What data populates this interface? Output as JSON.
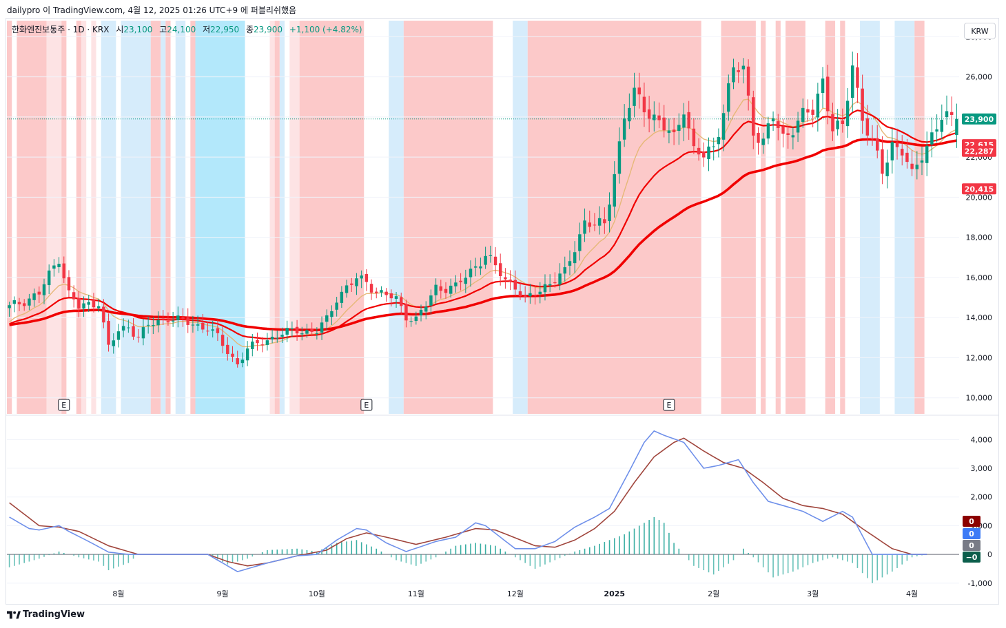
{
  "header": {
    "attribution": "dailypro 이 TradingView.com, 4월 12, 2025 01:26 UTC+9 에 퍼블리쉬했음"
  },
  "legend": {
    "symbol": "한화엔진보통주 · 1D · KRX",
    "open_label": "시",
    "open": "23,100",
    "high_label": "고",
    "high": "24,100",
    "low_label": "저",
    "low": "22,950",
    "close_label": "종",
    "close": "23,900",
    "change": "+1,100 (+4.82%)"
  },
  "currency": "KRW",
  "footer": {
    "brand": "TradingView"
  },
  "colors": {
    "up": "#089981",
    "down": "#f23645",
    "ma_red": "#f00000",
    "ma_tan": "#e6b878",
    "macd": "#6f90ea",
    "signal": "#a0453c",
    "pink": "#fcc9c9",
    "lightblue": "#d6ecfb",
    "cyan": "#b3e8fb",
    "faint_pink": "#fde3e4"
  },
  "chart_data": [
    {
      "type": "candlestick",
      "title": "한화엔진보통주 · 1D · KRX",
      "ylim": [
        9200,
        28800
      ],
      "y_ticks": [
        "10,000",
        "12,000",
        "14,000",
        "16,000",
        "18,000",
        "20,000",
        "22,000",
        "24,000",
        "26,000",
        "28,000"
      ],
      "y_tick_values": [
        10000,
        12000,
        14000,
        16000,
        18000,
        20000,
        22000,
        24000,
        26000,
        28000
      ],
      "x_labels": [
        "8월",
        "9월",
        "10월",
        "11월",
        "12월",
        "2025",
        "2월",
        "3월",
        "4월"
      ],
      "x_label_days": [
        22,
        43,
        62,
        82,
        102,
        122,
        142,
        162,
        182
      ],
      "total_days": 192,
      "anchors": [
        [
          0,
          14500
        ],
        [
          6,
          15200
        ],
        [
          10,
          17000
        ],
        [
          12,
          15200
        ],
        [
          14,
          14500
        ],
        [
          18,
          14800
        ],
        [
          20,
          12500
        ],
        [
          22,
          13300
        ],
        [
          24,
          13600
        ],
        [
          26,
          13000
        ],
        [
          28,
          13600
        ],
        [
          32,
          14000
        ],
        [
          38,
          13600
        ],
        [
          40,
          13500
        ],
        [
          42,
          13000
        ],
        [
          44,
          12300
        ],
        [
          46,
          11700
        ],
        [
          48,
          12400
        ],
        [
          50,
          12700
        ],
        [
          54,
          13100
        ],
        [
          58,
          13400
        ],
        [
          60,
          13300
        ],
        [
          62,
          13300
        ],
        [
          64,
          13900
        ],
        [
          66,
          15000
        ],
        [
          68,
          15500
        ],
        [
          70,
          15900
        ],
        [
          72,
          15800
        ],
        [
          74,
          15300
        ],
        [
          78,
          14900
        ],
        [
          80,
          14100
        ],
        [
          82,
          13900
        ],
        [
          84,
          14600
        ],
        [
          86,
          15500
        ],
        [
          90,
          15500
        ],
        [
          94,
          16600
        ],
        [
          96,
          17100
        ],
        [
          100,
          15900
        ],
        [
          102,
          15600
        ],
        [
          104,
          14800
        ],
        [
          108,
          15600
        ],
        [
          112,
          16200
        ],
        [
          114,
          17500
        ],
        [
          116,
          18800
        ],
        [
          118,
          18600
        ],
        [
          120,
          18600
        ],
        [
          124,
          24000
        ],
        [
          126,
          25100
        ],
        [
          130,
          24000
        ],
        [
          134,
          22900
        ],
        [
          136,
          24600
        ],
        [
          138,
          22300
        ],
        [
          140,
          22000
        ],
        [
          142,
          22500
        ],
        [
          146,
          26300
        ],
        [
          148,
          26400
        ],
        [
          150,
          23400
        ],
        [
          152,
          22700
        ],
        [
          154,
          24000
        ],
        [
          156,
          23000
        ],
        [
          160,
          24000
        ],
        [
          162,
          24300
        ],
        [
          164,
          25900
        ],
        [
          166,
          23400
        ],
        [
          168,
          23400
        ],
        [
          170,
          26700
        ],
        [
          172,
          24000
        ],
        [
          174,
          22600
        ],
        [
          176,
          21300
        ],
        [
          178,
          22700
        ],
        [
          180,
          22300
        ],
        [
          182,
          21000
        ],
        [
          184,
          22200
        ],
        [
          186,
          23100
        ],
        [
          188,
          23900
        ]
      ],
      "last_close": 23900,
      "last_close_label": "23,900",
      "ma_labels": [
        "22,615",
        "22,287",
        "20,415"
      ],
      "earnings_marker": "E",
      "earnings_days": [
        11,
        72,
        133
      ],
      "series": [
        {
          "name": "MA20 (tan)",
          "values_from_day": 0
        },
        {
          "name": "MA red 1",
          "values_from_day": 0
        },
        {
          "name": "MA red 2 (thick)",
          "values_from_day": 0
        }
      ],
      "background_bands": [
        [
          0,
          1,
          "pink"
        ],
        [
          2,
          5,
          "pink"
        ],
        [
          5,
          8,
          "pink"
        ],
        [
          8,
          11,
          "faint_pink"
        ],
        [
          11,
          12,
          "pink"
        ],
        [
          14,
          15,
          "pink"
        ],
        [
          15,
          16,
          "faint_pink"
        ],
        [
          17,
          18,
          "faint_pink"
        ],
        [
          19,
          22,
          "lightblue"
        ],
        [
          23,
          29,
          "lightblue"
        ],
        [
          29,
          31,
          "pink"
        ],
        [
          31,
          32,
          "lightblue"
        ],
        [
          32,
          33,
          "pink"
        ],
        [
          34,
          36,
          "lightblue"
        ],
        [
          37,
          38,
          "pink"
        ],
        [
          38,
          48,
          "cyan"
        ],
        [
          53,
          54,
          "faint_pink"
        ],
        [
          54,
          55,
          "pink"
        ],
        [
          55,
          56,
          "lightblue"
        ],
        [
          57,
          59,
          "faint_pink"
        ],
        [
          59,
          72,
          "pink"
        ],
        [
          77,
          80,
          "lightblue"
        ],
        [
          80,
          98,
          "pink"
        ],
        [
          102,
          105,
          "lightblue"
        ],
        [
          105,
          140,
          "pink"
        ],
        [
          144,
          151,
          "pink"
        ],
        [
          152,
          153,
          "pink"
        ],
        [
          155,
          156,
          "pink"
        ],
        [
          157,
          161,
          "pink"
        ],
        [
          165,
          167,
          "pink"
        ],
        [
          168,
          169,
          "pink"
        ],
        [
          172,
          176,
          "lightblue"
        ],
        [
          179,
          183,
          "lightblue"
        ],
        [
          183,
          185,
          "pink"
        ]
      ]
    },
    {
      "type": "line",
      "title": "MACD",
      "ylim": [
        -1700,
        4800
      ],
      "y_ticks": [
        "-1,000",
        "0",
        "1,000",
        "2,000",
        "3,000",
        "4,000"
      ],
      "y_tick_values": [
        -1000,
        0,
        1000,
        2000,
        3000,
        4000
      ],
      "macd_anchors": [
        [
          0,
          1300
        ],
        [
          4,
          900
        ],
        [
          6,
          850
        ],
        [
          10,
          1000
        ],
        [
          12,
          800
        ],
        [
          16,
          450
        ],
        [
          20,
          80
        ],
        [
          24,
          0
        ],
        [
          40,
          0
        ],
        [
          44,
          -400
        ],
        [
          46,
          -600
        ],
        [
          48,
          -500
        ],
        [
          52,
          -300
        ],
        [
          58,
          -50
        ],
        [
          62,
          0
        ],
        [
          66,
          500
        ],
        [
          70,
          900
        ],
        [
          72,
          850
        ],
        [
          76,
          400
        ],
        [
          80,
          100
        ],
        [
          86,
          450
        ],
        [
          90,
          600
        ],
        [
          94,
          1100
        ],
        [
          96,
          1000
        ],
        [
          102,
          200
        ],
        [
          106,
          200
        ],
        [
          110,
          450
        ],
        [
          114,
          950
        ],
        [
          118,
          1300
        ],
        [
          121,
          1600
        ],
        [
          125,
          2900
        ],
        [
          128,
          3900
        ],
        [
          130,
          4300
        ],
        [
          132,
          4150
        ],
        [
          136,
          3900
        ],
        [
          140,
          3000
        ],
        [
          143,
          3100
        ],
        [
          147,
          3300
        ],
        [
          150,
          2500
        ],
        [
          153,
          1850
        ],
        [
          157,
          1650
        ],
        [
          160,
          1500
        ],
        [
          164,
          1150
        ],
        [
          168,
          1500
        ],
        [
          170,
          1300
        ],
        [
          174,
          0
        ],
        [
          182,
          0
        ],
        [
          185,
          0
        ]
      ],
      "signal_anchors": [
        [
          0,
          1800
        ],
        [
          6,
          1000
        ],
        [
          10,
          950
        ],
        [
          14,
          800
        ],
        [
          20,
          300
        ],
        [
          26,
          0
        ],
        [
          40,
          0
        ],
        [
          44,
          -250
        ],
        [
          48,
          -400
        ],
        [
          52,
          -300
        ],
        [
          58,
          -50
        ],
        [
          64,
          150
        ],
        [
          68,
          550
        ],
        [
          72,
          750
        ],
        [
          76,
          600
        ],
        [
          82,
          350
        ],
        [
          88,
          600
        ],
        [
          94,
          900
        ],
        [
          98,
          850
        ],
        [
          106,
          300
        ],
        [
          110,
          250
        ],
        [
          114,
          500
        ],
        [
          118,
          900
        ],
        [
          122,
          1500
        ],
        [
          126,
          2500
        ],
        [
          130,
          3400
        ],
        [
          134,
          3900
        ],
        [
          136,
          4050
        ],
        [
          140,
          3600
        ],
        [
          144,
          3200
        ],
        [
          148,
          3000
        ],
        [
          152,
          2500
        ],
        [
          156,
          1950
        ],
        [
          160,
          1700
        ],
        [
          164,
          1600
        ],
        [
          168,
          1400
        ],
        [
          172,
          900
        ],
        [
          178,
          200
        ],
        [
          182,
          0
        ],
        [
          185,
          0
        ]
      ],
      "hist_anchors": [
        [
          0,
          -450
        ],
        [
          6,
          -150
        ],
        [
          10,
          100
        ],
        [
          14,
          -100
        ],
        [
          18,
          -250
        ],
        [
          20,
          -550
        ],
        [
          24,
          -300
        ],
        [
          26,
          0
        ],
        [
          40,
          0
        ],
        [
          44,
          -350
        ],
        [
          48,
          -150
        ],
        [
          52,
          150
        ],
        [
          58,
          200
        ],
        [
          62,
          100
        ],
        [
          66,
          400
        ],
        [
          70,
          500
        ],
        [
          74,
          200
        ],
        [
          78,
          -200
        ],
        [
          82,
          -400
        ],
        [
          86,
          -100
        ],
        [
          90,
          300
        ],
        [
          94,
          400
        ],
        [
          98,
          300
        ],
        [
          102,
          -100
        ],
        [
          106,
          -500
        ],
        [
          110,
          -200
        ],
        [
          114,
          100
        ],
        [
          118,
          300
        ],
        [
          124,
          700
        ],
        [
          128,
          1100
        ],
        [
          130,
          1300
        ],
        [
          132,
          1100
        ],
        [
          134,
          400
        ],
        [
          138,
          -400
        ],
        [
          142,
          -700
        ],
        [
          146,
          -200
        ],
        [
          148,
          200
        ],
        [
          150,
          -100
        ],
        [
          154,
          -800
        ],
        [
          158,
          -600
        ],
        [
          162,
          -300
        ],
        [
          166,
          -100
        ],
        [
          170,
          -300
        ],
        [
          174,
          -1000
        ],
        [
          178,
          -600
        ],
        [
          182,
          -100
        ],
        [
          185,
          0
        ]
      ],
      "badges": [
        "0",
        "0",
        "0",
        "−0"
      ]
    }
  ]
}
